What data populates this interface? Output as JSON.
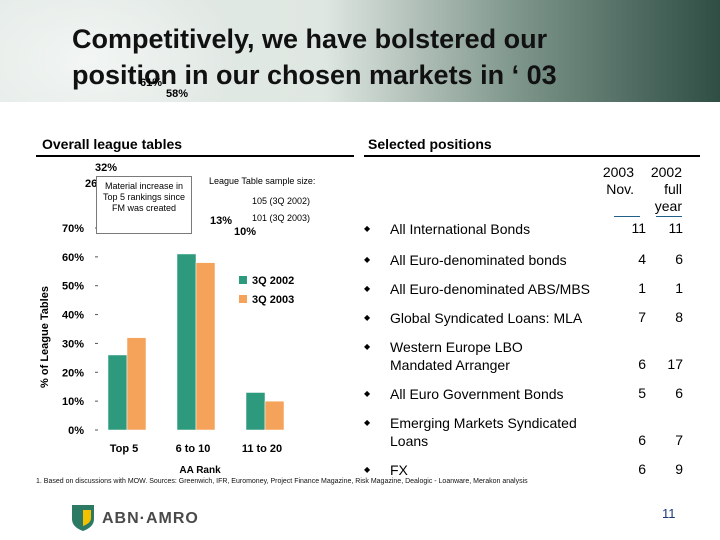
{
  "title": {
    "line1": "Competitively, we have bolstered our",
    "line2": "position in our chosen markets in ‘ 03"
  },
  "left_section": {
    "heading": "Overall league tables"
  },
  "right_section": {
    "heading": "Selected positions"
  },
  "note_box": "Material increase in Top 5 rankings since FM was created",
  "sample_size": {
    "label": "League Table sample size:",
    "line1": "105 (3Q 2002)",
    "line2": "101 (3Q 2003)"
  },
  "chart_data": {
    "type": "bar",
    "title": "",
    "xlabel": "AA Rank",
    "ylabel": "% of League Tables",
    "categories": [
      "Top 5",
      "6 to 10",
      "11 to 20"
    ],
    "series": [
      {
        "name": "3Q 2002",
        "values": [
          26,
          61,
          13
        ],
        "labels": [
          "26%",
          "61%",
          "13%"
        ],
        "color": "#2d9a7e"
      },
      {
        "name": "3Q 2003",
        "values": [
          32,
          58,
          10
        ],
        "labels": [
          "32%",
          "58%",
          "10%"
        ],
        "color": "#f5a25b"
      }
    ],
    "ylim": [
      0,
      70
    ],
    "yticks": [
      0,
      10,
      20,
      30,
      40,
      50,
      60,
      70
    ],
    "ytick_labels": [
      "0%",
      "10%",
      "20%",
      "30%",
      "40%",
      "50%",
      "60%",
      "70%"
    ],
    "grid": false,
    "legend_position": "right"
  },
  "positions": {
    "col_2003": [
      "2003",
      "Nov."
    ],
    "col_2002": [
      "2002",
      "full",
      "year"
    ],
    "rows": [
      {
        "label": "All International Bonds",
        "v2003": "11",
        "v2002": "11"
      },
      {
        "label": "All Euro-denominated bonds",
        "v2003": "4",
        "v2002": "6"
      },
      {
        "label": "All Euro-denominated ABS/MBS",
        "v2003": "1",
        "v2002": "1"
      },
      {
        "label": "Global Syndicated Loans: MLA",
        "v2003": "7",
        "v2002": "8"
      },
      {
        "label": "Western Europe LBO Mandated Arranger",
        "v2003": "6",
        "v2002": "17"
      },
      {
        "label": "All Euro Government Bonds",
        "v2003": "5",
        "v2002": "6"
      },
      {
        "label": "Emerging Markets Syndicated Loans",
        "v2003": "6",
        "v2002": "7"
      },
      {
        "label": "FX",
        "v2003": "6",
        "v2002": "9"
      }
    ]
  },
  "footnote": "1. Based on discussions with MOW. Sources: Greenwich, IFR, Euromoney, Project Finance Magazine, Risk Magazine, Dealogic - Loanware, Merakon analysis",
  "logo": {
    "text": "ABN·AMRO",
    "colors": {
      "green": "#2d7a64",
      "yellow": "#f2c200",
      "gray": "#4a4a4a"
    }
  },
  "page_number": "11"
}
